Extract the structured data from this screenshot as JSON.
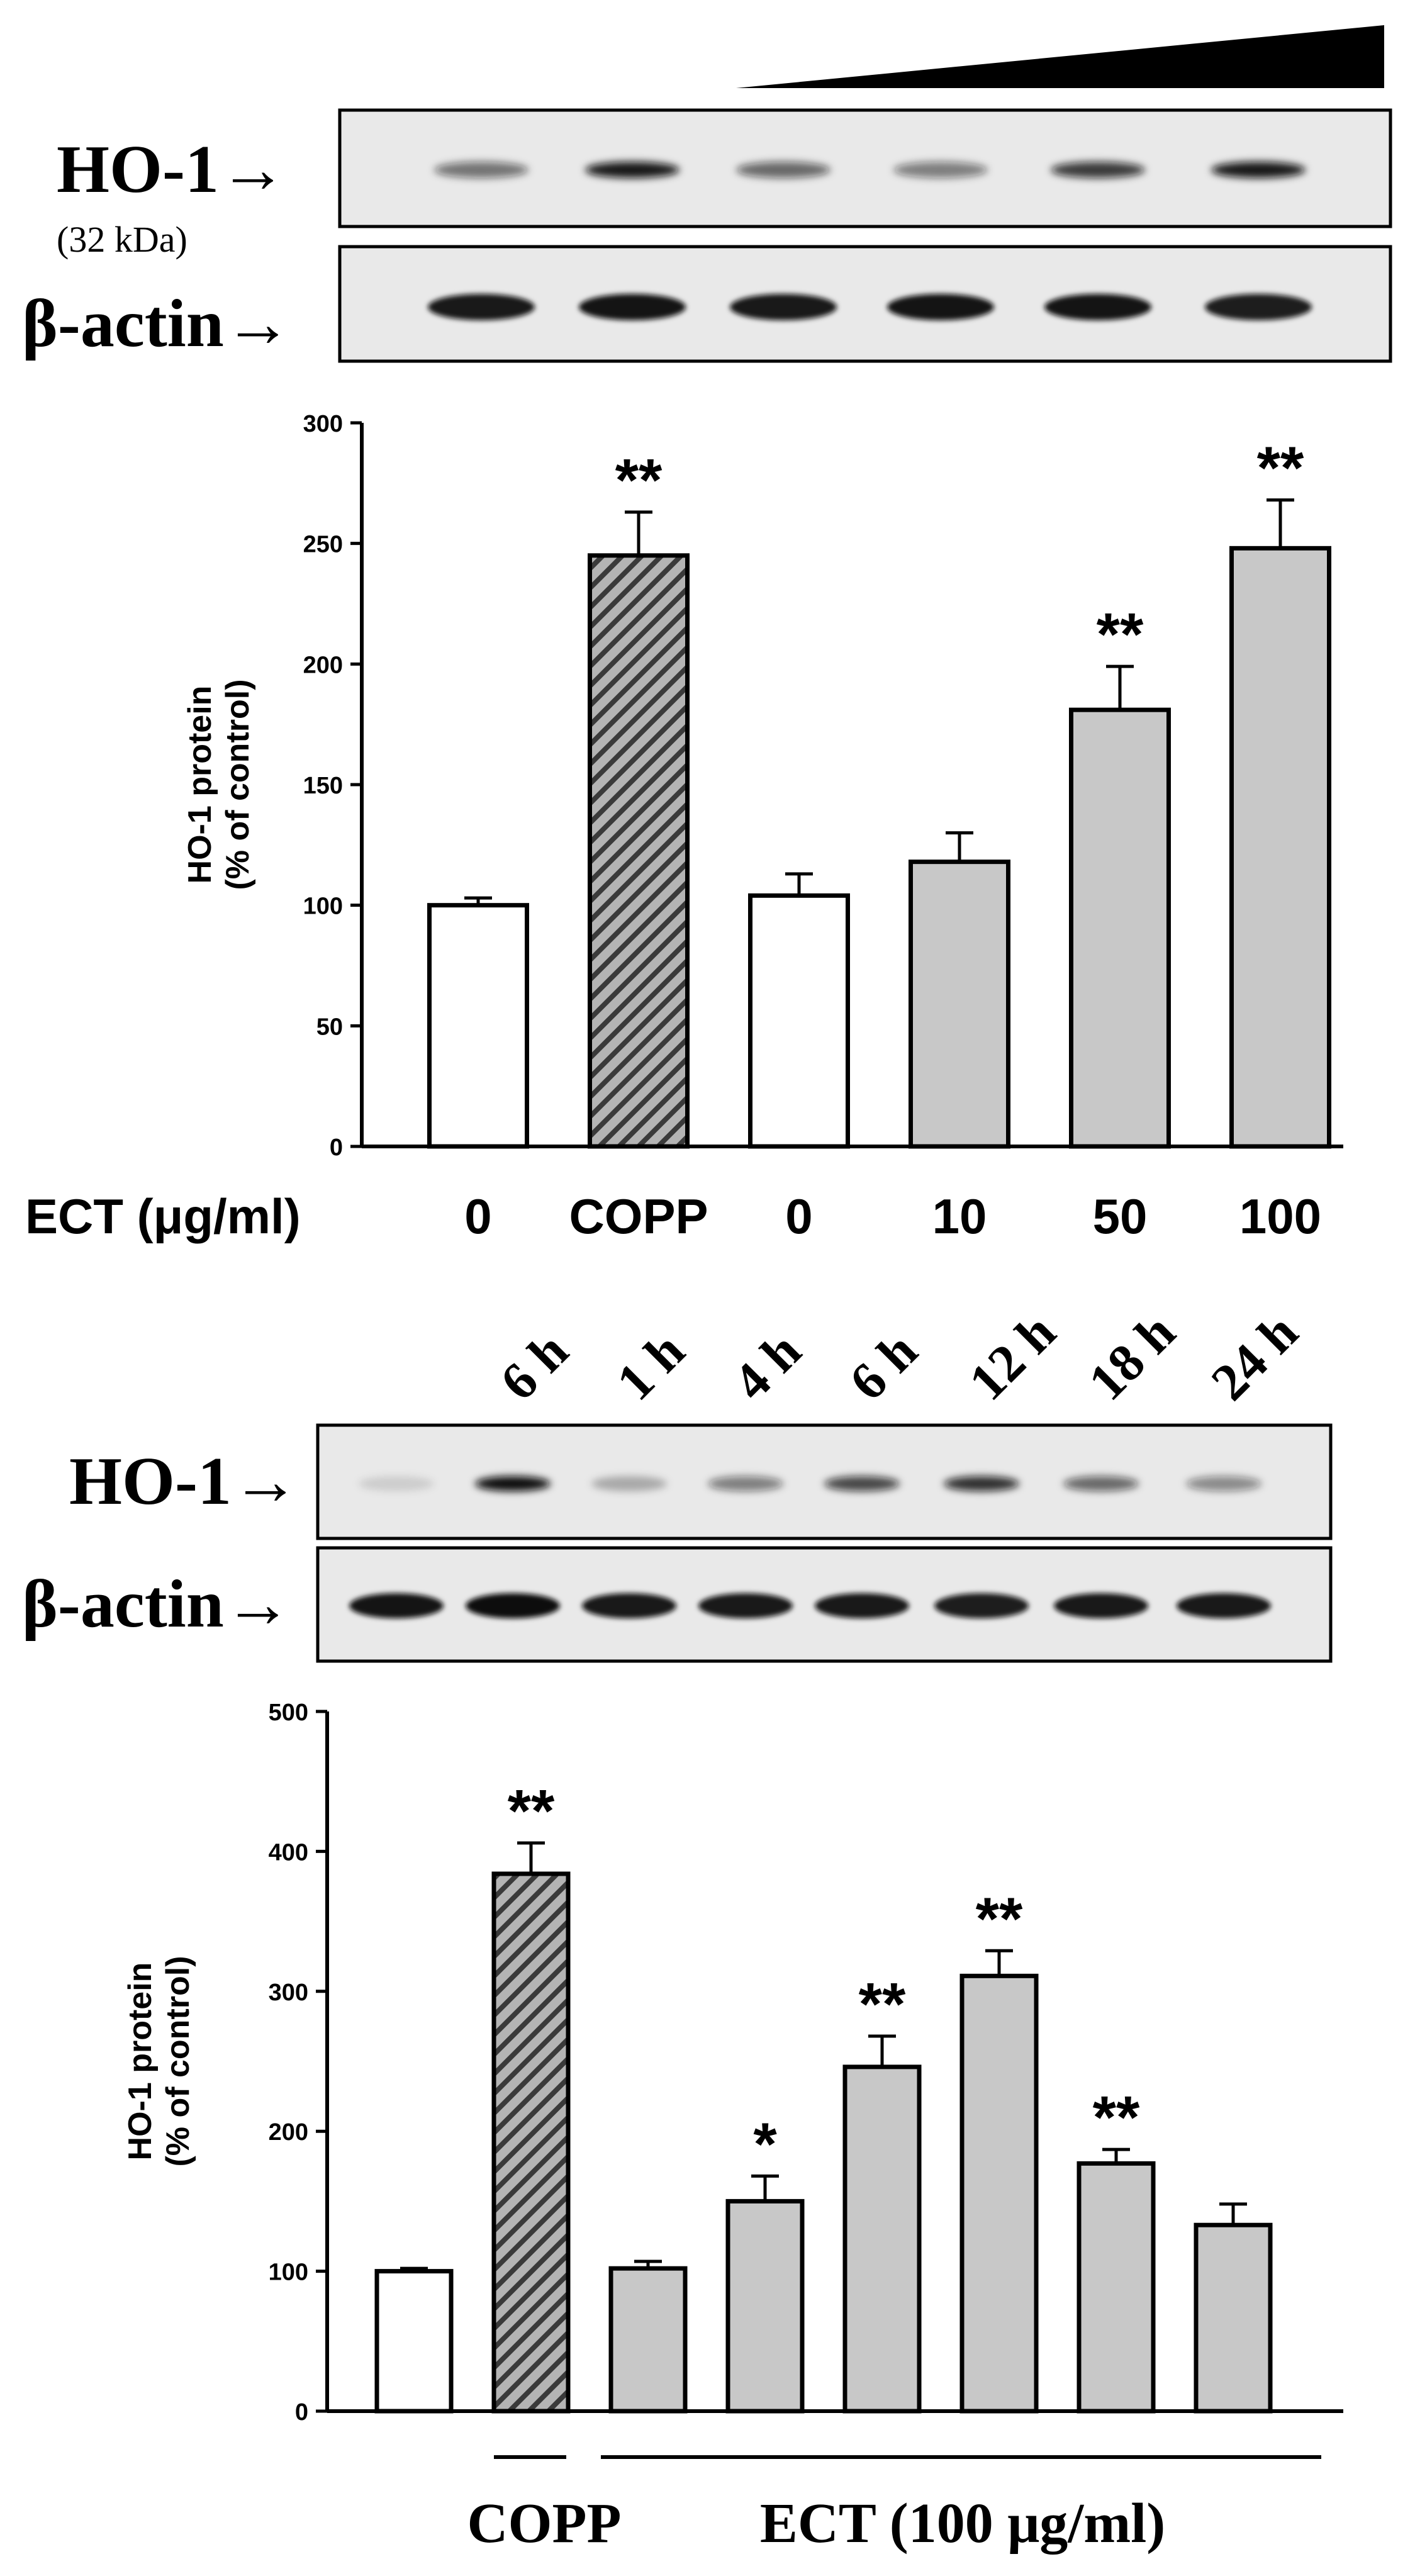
{
  "colors": {
    "open_bar": "#ffffff",
    "hatched_bar": "#b4b4b4",
    "gray_bar": "#c8c8c8",
    "ink": "#000000",
    "blot_bg": "#e9e9e9"
  },
  "panel1": {
    "blot": {
      "ho1_label": "HO-1→",
      "ho1_kda": "(32 kDa)",
      "actin_label": "β-actin→"
    },
    "x_caption": "ECT (μg/ml)"
  },
  "panel2": {
    "blot": {
      "lane_labels": [
        "6 h",
        "1 h",
        "4 h",
        "6 h",
        "12 h",
        "18 h",
        "24 h"
      ],
      "ho1_label": "HO-1→",
      "actin_label": "β-actin→"
    },
    "group_labels": {
      "copp": "COPP",
      "ect": "ECT (100 μg/ml)"
    }
  },
  "chart_data": [
    {
      "type": "bar",
      "categories": [
        "0",
        "COPP",
        "0",
        "10",
        "50",
        "100"
      ],
      "values": [
        100,
        245,
        104,
        118,
        181,
        248
      ],
      "errors": [
        3,
        18,
        9,
        12,
        18,
        20
      ],
      "significance": [
        "",
        "**",
        "",
        "",
        "**",
        "**"
      ],
      "fill": [
        "open",
        "hatched",
        "open",
        "gray",
        "gray",
        "gray"
      ],
      "ylabel": "HO-1 protein\n(% of control)",
      "xlabel": "ECT (μg/ml)",
      "ylim": [
        0,
        300
      ],
      "yticks": [
        0,
        50,
        100,
        150,
        200,
        250,
        300
      ],
      "grid": false
    },
    {
      "type": "bar",
      "categories": [
        "",
        "",
        "",
        "",
        "",
        "",
        "",
        ""
      ],
      "values": [
        100,
        384,
        102,
        150,
        246,
        311,
        177,
        133
      ],
      "errors": [
        2,
        22,
        5,
        18,
        22,
        18,
        10,
        15
      ],
      "significance": [
        "",
        "**",
        "",
        "*",
        "**",
        "**",
        "**",
        ""
      ],
      "fill": [
        "open",
        "hatched",
        "gray",
        "gray",
        "gray",
        "gray",
        "gray",
        "gray"
      ],
      "ylabel": "HO-1 protein\n(% of control)",
      "ylim": [
        0,
        500
      ],
      "yticks": [
        0,
        100,
        200,
        300,
        400,
        500
      ],
      "grid": false
    }
  ]
}
